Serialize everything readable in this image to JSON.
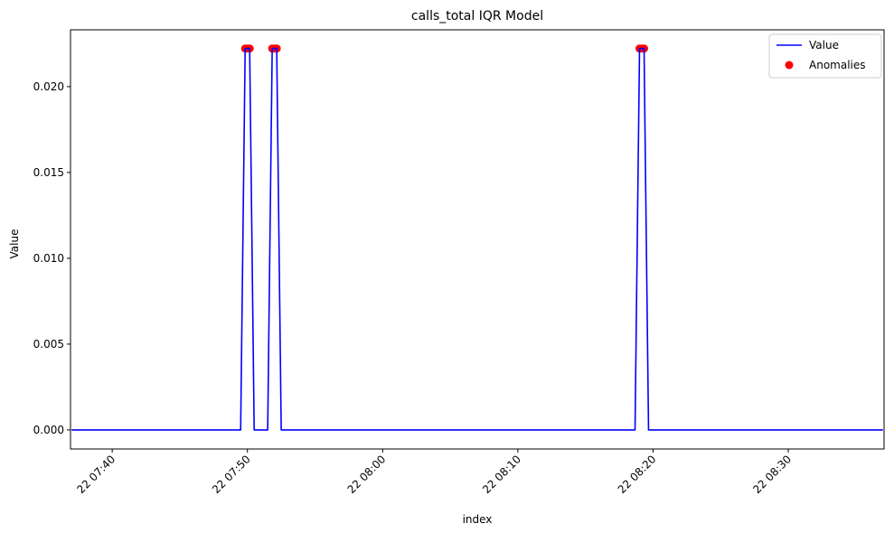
{
  "chart_data": {
    "type": "line",
    "title": "calls_total IQR Model",
    "xlabel": "index",
    "ylabel": "Value",
    "ylim": [
      -0.00111,
      0.02331
    ],
    "xlim": [
      "07:36:55",
      "08:37:05"
    ],
    "date_prefix": "22",
    "grid": false,
    "legend_position": "upper right",
    "x_ticks": [
      "22 07:40",
      "22 07:50",
      "22 08:00",
      "22 08:10",
      "22 08:20",
      "22 08:30"
    ],
    "y_ticks": [
      "0.000",
      "0.005",
      "0.010",
      "0.015",
      "0.020"
    ],
    "series": [
      {
        "name": "Value",
        "color": "#0000ff",
        "x": [
          "07:37:00",
          "07:49:30",
          "07:49:50",
          "07:50:00",
          "07:50:10",
          "07:50:30",
          "07:51:30",
          "07:51:50",
          "07:52:00",
          "07:52:10",
          "07:52:30",
          "08:18:40",
          "08:19:00",
          "08:19:10",
          "08:19:20",
          "08:19:40",
          "08:37:00"
        ],
        "y": [
          0,
          0,
          0.02222,
          0.02222,
          0.02222,
          0,
          0,
          0.02222,
          0.02222,
          0.02222,
          0,
          0,
          0.02222,
          0.02222,
          0.02222,
          0,
          0
        ]
      },
      {
        "name": "Anomalies",
        "type": "scatter",
        "color": "#ff0000",
        "x": [
          "07:49:50",
          "07:50:00",
          "07:50:10",
          "07:51:50",
          "07:52:00",
          "07:52:10",
          "08:19:00",
          "08:19:10",
          "08:19:20"
        ],
        "y": [
          0.02222,
          0.02222,
          0.02222,
          0.02222,
          0.02222,
          0.02222,
          0.02222,
          0.02222,
          0.02222
        ]
      }
    ]
  }
}
